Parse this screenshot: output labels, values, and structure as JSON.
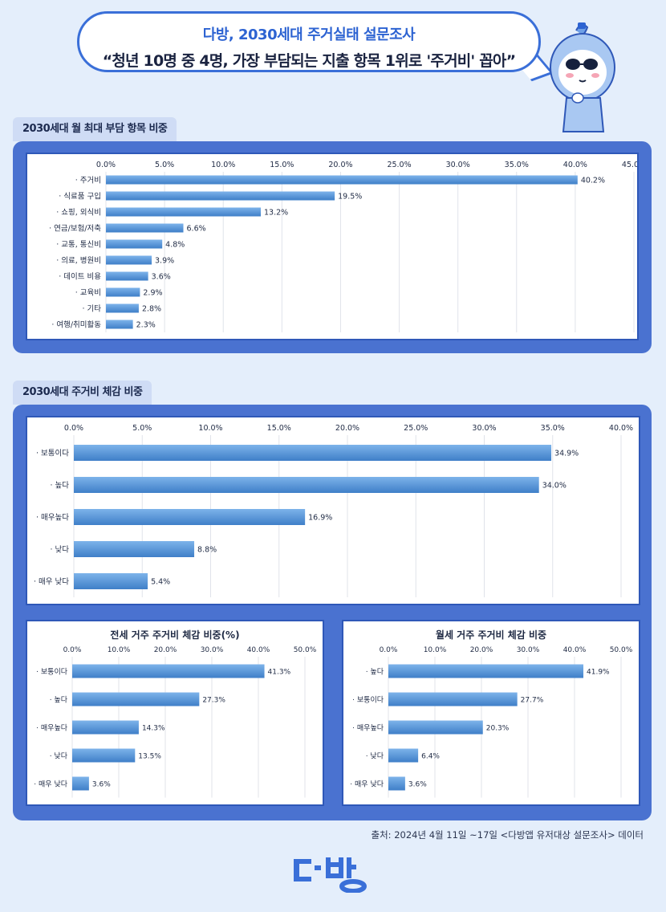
{
  "header": {
    "line1": "다방, 2030세대 주거실태 설문조사",
    "line2": "“청년 10명 중 4명, 가장 부담되는 지출 항목 1위로 '주거비' 꼽아”"
  },
  "colors": {
    "bar": "#5b9bde",
    "bar_dark": "#3f7fc8",
    "panel": "#4a72d0",
    "accent": "#2d63d2"
  },
  "section1": {
    "tag": "2030세대 월 최대 부담 항목 비중"
  },
  "section2": {
    "tag": "2030세대 주거비 체감 비중"
  },
  "source": "출처: 2024년 4월 11일 ~17일 <다방앱 유저대상 설문조사> 데이터",
  "logo_text": "다방",
  "chart_data": [
    {
      "type": "bar",
      "orientation": "horizontal",
      "title": "",
      "categories": [
        "· 주거비",
        "· 식료품 구입",
        "· 쇼핑, 외식비",
        "· 연금/보험/저축",
        "· 교통, 통신비",
        "· 의료, 병원비",
        "· 데이트 비용",
        "· 교육비",
        "· 기타",
        "· 여행/취미활동"
      ],
      "values": [
        40.2,
        19.5,
        13.2,
        6.6,
        4.8,
        3.9,
        3.6,
        2.9,
        2.8,
        2.3
      ],
      "labels": [
        "40.2%",
        "19.5%",
        "13.2%",
        "6.6%",
        "4.8%",
        "3.9%",
        "3.6%",
        "2.9%",
        "2.8%",
        "2.3%"
      ],
      "ticks": [
        "0.0%",
        "5.0%",
        "10.0%",
        "15.0%",
        "20.0%",
        "25.0%",
        "30.0%",
        "35.0%",
        "40.0%",
        "45.0%"
      ],
      "xlim": [
        0,
        45
      ],
      "grid": true,
      "axis_position": "top"
    },
    {
      "type": "bar",
      "orientation": "horizontal",
      "title": "",
      "categories": [
        "· 보통이다",
        "· 높다",
        "· 매우높다",
        "· 낮다",
        "· 매우 낮다"
      ],
      "values": [
        34.9,
        34.0,
        16.9,
        8.8,
        5.4
      ],
      "labels": [
        "34.9%",
        "34.0%",
        "16.9%",
        "8.8%",
        "5.4%"
      ],
      "ticks": [
        "0.0%",
        "5.0%",
        "10.0%",
        "15.0%",
        "20.0%",
        "25.0%",
        "30.0%",
        "35.0%",
        "40.0%"
      ],
      "xlim": [
        0,
        40
      ],
      "grid": true,
      "axis_position": "top"
    },
    {
      "type": "bar",
      "orientation": "horizontal",
      "title": "전세 거주 주거비 체감 비중(%)",
      "categories": [
        "· 보통이다",
        "· 높다",
        "· 매우높다",
        "· 낮다",
        "· 매우 낮다"
      ],
      "values": [
        41.3,
        27.3,
        14.3,
        13.5,
        3.6
      ],
      "labels": [
        "41.3%",
        "27.3%",
        "14.3%",
        "13.5%",
        "3.6%"
      ],
      "ticks": [
        "0.0%",
        "10.0%",
        "20.0%",
        "30.0%",
        "40.0%",
        "50.0%"
      ],
      "xlim": [
        0,
        50
      ],
      "grid": true,
      "axis_position": "top"
    },
    {
      "type": "bar",
      "orientation": "horizontal",
      "title": "월세 거주 주거비 체감 비중",
      "categories": [
        "· 높다",
        "· 보통이다",
        "· 매우높다",
        "· 낮다",
        "· 매우 낮다"
      ],
      "values": [
        41.9,
        27.7,
        20.3,
        6.4,
        3.6
      ],
      "labels": [
        "41.9%",
        "27.7%",
        "20.3%",
        "6.4%",
        "3.6%"
      ],
      "ticks": [
        "0.0%",
        "10.0%",
        "20.0%",
        "30.0%",
        "40.0%",
        "50.0%"
      ],
      "xlim": [
        0,
        50
      ],
      "grid": true,
      "axis_position": "top"
    }
  ]
}
